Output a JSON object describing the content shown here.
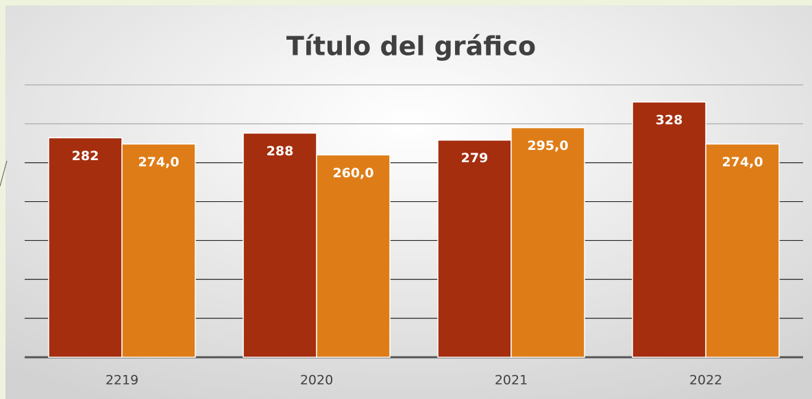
{
  "chart_data": {
    "type": "bar",
    "title": "Título del gráfico",
    "categories": [
      "2219",
      "2020",
      "2021",
      "2022"
    ],
    "series": [
      {
        "color": "#a52e0e",
        "values": [
          282,
          288,
          279,
          328
        ]
      },
      {
        "color": "#de7d18",
        "values": [
          274,
          260,
          295,
          274
        ],
        "value_labels": [
          "274,0",
          "260,0",
          "295,0",
          "274,0"
        ]
      }
    ],
    "ylim": [
      0,
      350
    ],
    "yticks": [
      0,
      50,
      100,
      150,
      200,
      250,
      300,
      350
    ],
    "grid": true
  }
}
